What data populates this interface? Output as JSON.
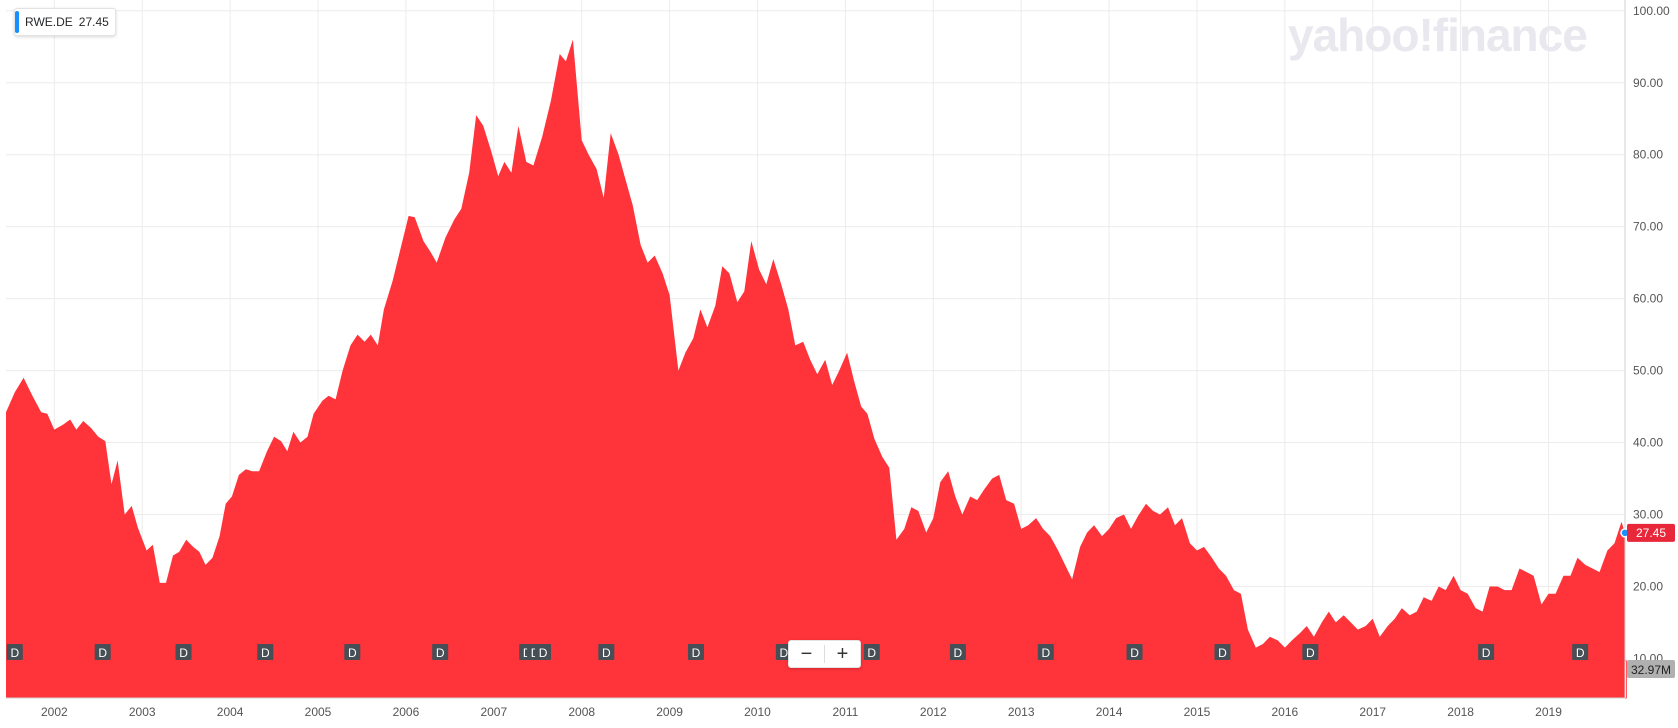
{
  "logo_text": "yahoo!finance",
  "ticker": {
    "symbol": "RWE.DE",
    "value": "27.45"
  },
  "zoom": {
    "minus": "−",
    "plus": "+"
  },
  "colors": {
    "area": "#ff333a",
    "volume_down": "#ff333a",
    "volume_up": "#00b061",
    "grid": "#ececec",
    "badge_accent": "#188fff",
    "last_price_bg": "#e8283a",
    "volume_label_bg": "#b0b0b0"
  },
  "chart_data": {
    "type": "area",
    "title": "",
    "xlabel": "",
    "ylabel": "",
    "ylim": [
      4.5,
      101.5
    ],
    "x_range": [
      2001.45,
      2019.87
    ],
    "y_ticks": [
      "10.00",
      "20.00",
      "30.00",
      "40.00",
      "50.00",
      "60.00",
      "70.00",
      "80.00",
      "90.00",
      "100.00"
    ],
    "x_ticks": [
      "2002",
      "2003",
      "2004",
      "2005",
      "2006",
      "2007",
      "2008",
      "2009",
      "2010",
      "2011",
      "2012",
      "2013",
      "2014",
      "2015",
      "2016",
      "2017",
      "2018",
      "2019"
    ],
    "last_price": "27.45",
    "volume_label": "32.97M",
    "dividend_marker": "D",
    "dividend_dates": [
      2001.55,
      2002.55,
      2003.47,
      2004.4,
      2005.39,
      2006.39,
      2007.38,
      2007.47,
      2007.56,
      2008.28,
      2009.3,
      2010.3,
      2011.3,
      2012.28,
      2013.28,
      2014.29,
      2015.29,
      2016.29,
      2018.29,
      2019.36
    ],
    "series": [
      {
        "points": [
          [
            2001.45,
            44.2
          ],
          [
            2001.55,
            47
          ],
          [
            2001.65,
            49
          ],
          [
            2001.75,
            46.5
          ],
          [
            2001.85,
            44.2
          ],
          [
            2001.92,
            44
          ],
          [
            2002.0,
            41.8
          ],
          [
            2002.1,
            42.5
          ],
          [
            2002.18,
            43.2
          ],
          [
            2002.25,
            41.8
          ],
          [
            2002.33,
            43
          ],
          [
            2002.42,
            42
          ],
          [
            2002.5,
            40.8
          ],
          [
            2002.58,
            40.2
          ],
          [
            2002.65,
            34.2
          ],
          [
            2002.72,
            37.5
          ],
          [
            2002.8,
            30
          ],
          [
            2002.88,
            31.2
          ],
          [
            2002.95,
            28.2
          ],
          [
            2003.05,
            25
          ],
          [
            2003.12,
            25.8
          ],
          [
            2003.2,
            20.5
          ],
          [
            2003.27,
            20.5
          ],
          [
            2003.35,
            24.3
          ],
          [
            2003.42,
            24.8
          ],
          [
            2003.5,
            26.5
          ],
          [
            2003.58,
            25.5
          ],
          [
            2003.65,
            24.8
          ],
          [
            2003.72,
            23
          ],
          [
            2003.8,
            24
          ],
          [
            2003.88,
            27
          ],
          [
            2003.95,
            31.5
          ],
          [
            2004.02,
            32.5
          ],
          [
            2004.1,
            35.5
          ],
          [
            2004.18,
            36.3
          ],
          [
            2004.25,
            36
          ],
          [
            2004.33,
            36
          ],
          [
            2004.42,
            38.8
          ],
          [
            2004.5,
            40.8
          ],
          [
            2004.58,
            40.2
          ],
          [
            2004.65,
            38.8
          ],
          [
            2004.72,
            41.5
          ],
          [
            2004.8,
            40
          ],
          [
            2004.88,
            40.8
          ],
          [
            2004.95,
            44
          ],
          [
            2005.05,
            45.8
          ],
          [
            2005.12,
            46.5
          ],
          [
            2005.2,
            46
          ],
          [
            2005.28,
            50
          ],
          [
            2005.37,
            53.5
          ],
          [
            2005.45,
            55
          ],
          [
            2005.53,
            54
          ],
          [
            2005.6,
            55
          ],
          [
            2005.68,
            53.5
          ],
          [
            2005.75,
            58.5
          ],
          [
            2005.85,
            62.5
          ],
          [
            2005.95,
            67.5
          ],
          [
            2006.03,
            71.5
          ],
          [
            2006.1,
            71.3
          ],
          [
            2006.2,
            68
          ],
          [
            2006.28,
            66.5
          ],
          [
            2006.35,
            65
          ],
          [
            2006.45,
            68.5
          ],
          [
            2006.55,
            71
          ],
          [
            2006.63,
            72.5
          ],
          [
            2006.72,
            77.5
          ],
          [
            2006.8,
            85.5
          ],
          [
            2006.88,
            84
          ],
          [
            2006.97,
            80.5
          ],
          [
            2007.05,
            77
          ],
          [
            2007.12,
            79
          ],
          [
            2007.2,
            77.5
          ],
          [
            2007.28,
            84
          ],
          [
            2007.37,
            79
          ],
          [
            2007.45,
            78.5
          ],
          [
            2007.55,
            82.5
          ],
          [
            2007.65,
            87.5
          ],
          [
            2007.75,
            94
          ],
          [
            2007.82,
            93
          ],
          [
            2007.9,
            96
          ],
          [
            2008.0,
            82
          ],
          [
            2008.08,
            80
          ],
          [
            2008.17,
            78
          ],
          [
            2008.25,
            74
          ],
          [
            2008.33,
            83
          ],
          [
            2008.42,
            80
          ],
          [
            2008.5,
            76.5
          ],
          [
            2008.58,
            73
          ],
          [
            2008.67,
            67.5
          ],
          [
            2008.75,
            65
          ],
          [
            2008.83,
            66
          ],
          [
            2008.92,
            63.5
          ],
          [
            2009.0,
            60.5
          ],
          [
            2009.1,
            50
          ],
          [
            2009.18,
            52.5
          ],
          [
            2009.27,
            54.5
          ],
          [
            2009.35,
            58.5
          ],
          [
            2009.43,
            56
          ],
          [
            2009.52,
            59
          ],
          [
            2009.6,
            64.5
          ],
          [
            2009.68,
            63.5
          ],
          [
            2009.77,
            59.5
          ],
          [
            2009.85,
            61
          ],
          [
            2009.93,
            68
          ],
          [
            2010.02,
            64
          ],
          [
            2010.1,
            62
          ],
          [
            2010.18,
            65.5
          ],
          [
            2010.27,
            62
          ],
          [
            2010.35,
            58.5
          ],
          [
            2010.43,
            53.5
          ],
          [
            2010.52,
            54
          ],
          [
            2010.6,
            51.5
          ],
          [
            2010.68,
            49.5
          ],
          [
            2010.77,
            51.5
          ],
          [
            2010.85,
            48
          ],
          [
            2010.93,
            50
          ],
          [
            2011.02,
            52.5
          ],
          [
            2011.1,
            48.5
          ],
          [
            2011.18,
            45
          ],
          [
            2011.25,
            44
          ],
          [
            2011.33,
            40.5
          ],
          [
            2011.42,
            38
          ],
          [
            2011.5,
            36.5
          ],
          [
            2011.58,
            26.5
          ],
          [
            2011.67,
            28
          ],
          [
            2011.75,
            31
          ],
          [
            2011.83,
            30.5
          ],
          [
            2011.92,
            27.5
          ],
          [
            2012.0,
            29.5
          ],
          [
            2012.08,
            34.5
          ],
          [
            2012.17,
            36
          ],
          [
            2012.25,
            32.5
          ],
          [
            2012.33,
            30
          ],
          [
            2012.42,
            32.5
          ],
          [
            2012.5,
            32
          ],
          [
            2012.58,
            33.5
          ],
          [
            2012.67,
            35
          ],
          [
            2012.75,
            35.5
          ],
          [
            2012.83,
            32
          ],
          [
            2012.92,
            31.5
          ],
          [
            2013.0,
            28
          ],
          [
            2013.08,
            28.5
          ],
          [
            2013.17,
            29.5
          ],
          [
            2013.25,
            28
          ],
          [
            2013.33,
            27
          ],
          [
            2013.42,
            25
          ],
          [
            2013.5,
            23
          ],
          [
            2013.58,
            21
          ],
          [
            2013.67,
            25.5
          ],
          [
            2013.75,
            27.5
          ],
          [
            2013.83,
            28.5
          ],
          [
            2013.92,
            27
          ],
          [
            2014.0,
            28
          ],
          [
            2014.08,
            29.5
          ],
          [
            2014.17,
            30
          ],
          [
            2014.25,
            28
          ],
          [
            2014.33,
            29.8
          ],
          [
            2014.42,
            31.5
          ],
          [
            2014.5,
            30.5
          ],
          [
            2014.58,
            30
          ],
          [
            2014.67,
            31
          ],
          [
            2014.75,
            28.5
          ],
          [
            2014.83,
            29.5
          ],
          [
            2014.92,
            26
          ],
          [
            2015.0,
            25
          ],
          [
            2015.08,
            25.5
          ],
          [
            2015.17,
            24
          ],
          [
            2015.25,
            22.5
          ],
          [
            2015.33,
            21.5
          ],
          [
            2015.42,
            19.5
          ],
          [
            2015.5,
            19
          ],
          [
            2015.58,
            14
          ],
          [
            2015.67,
            11.5
          ],
          [
            2015.75,
            12
          ],
          [
            2015.83,
            13
          ],
          [
            2015.92,
            12.5
          ],
          [
            2016.0,
            11.5
          ],
          [
            2016.08,
            12.5
          ],
          [
            2016.17,
            13.5
          ],
          [
            2016.25,
            14.5
          ],
          [
            2016.33,
            13
          ],
          [
            2016.42,
            15
          ],
          [
            2016.5,
            16.5
          ],
          [
            2016.58,
            15
          ],
          [
            2016.67,
            16
          ],
          [
            2016.75,
            15
          ],
          [
            2016.83,
            14
          ],
          [
            2016.92,
            14.5
          ],
          [
            2017.0,
            15.5
          ],
          [
            2017.08,
            13
          ],
          [
            2017.17,
            14.5
          ],
          [
            2017.25,
            15.5
          ],
          [
            2017.33,
            17
          ],
          [
            2017.42,
            16
          ],
          [
            2017.5,
            16.5
          ],
          [
            2017.58,
            18.5
          ],
          [
            2017.67,
            18
          ],
          [
            2017.75,
            20
          ],
          [
            2017.83,
            19.5
          ],
          [
            2017.92,
            21.5
          ],
          [
            2018.0,
            19.5
          ],
          [
            2018.08,
            19
          ],
          [
            2018.17,
            17
          ],
          [
            2018.25,
            16.5
          ],
          [
            2018.33,
            20
          ],
          [
            2018.42,
            20
          ],
          [
            2018.5,
            19.5
          ],
          [
            2018.58,
            19.5
          ],
          [
            2018.67,
            22.5
          ],
          [
            2018.75,
            22
          ],
          [
            2018.83,
            21.5
          ],
          [
            2018.92,
            17.5
          ],
          [
            2019.0,
            19
          ],
          [
            2019.08,
            19
          ],
          [
            2019.17,
            21.5
          ],
          [
            2019.25,
            21.5
          ],
          [
            2019.33,
            24
          ],
          [
            2019.42,
            23
          ],
          [
            2019.5,
            22.5
          ],
          [
            2019.58,
            22
          ],
          [
            2019.67,
            25
          ],
          [
            2019.75,
            26
          ],
          [
            2019.83,
            29
          ],
          [
            2019.87,
            27.45
          ]
        ]
      }
    ]
  }
}
